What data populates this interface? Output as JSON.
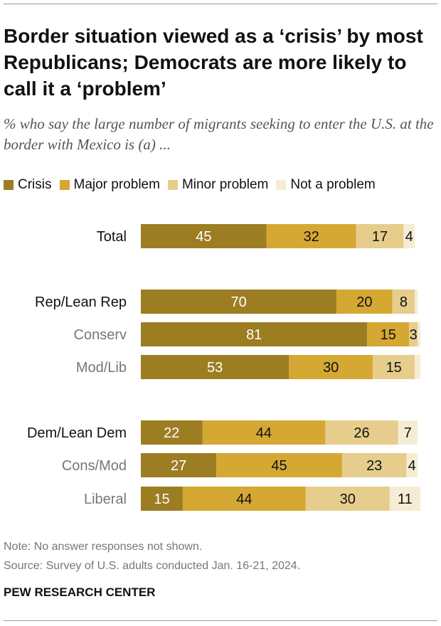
{
  "header": {
    "title": "Border situation viewed as a ‘crisis’ by most Republicans; Democrats are more likely to call it a ‘problem’",
    "subtitle": "% who say the large number of migrants seeking to enter the U.S. at the border with Mexico is (a) ..."
  },
  "legend": [
    {
      "label": "Crisis",
      "color": "#9c7d22"
    },
    {
      "label": "Major problem",
      "color": "#d5a833"
    },
    {
      "label": "Minor problem",
      "color": "#e6cd8c"
    },
    {
      "label": "Not a problem",
      "color": "#f5ecd4"
    }
  ],
  "chart_data": {
    "type": "bar",
    "orientation": "horizontal",
    "stacked": true,
    "unit": "%",
    "xlim": [
      0,
      100
    ],
    "grid": false,
    "series": [
      {
        "name": "Crisis",
        "color": "#9c7d22",
        "label_color": "#ffffff"
      },
      {
        "name": "Major problem",
        "color": "#d5a833",
        "label_color": "#111111"
      },
      {
        "name": "Minor problem",
        "color": "#e6cd8c",
        "label_color": "#111111"
      },
      {
        "name": "Not a problem",
        "color": "#f5ecd4",
        "label_color": "#111111"
      }
    ],
    "rows": [
      {
        "label": "Total",
        "style": "primary",
        "values": [
          45,
          32,
          17,
          4
        ],
        "labels": [
          "45",
          "32",
          "17",
          "4"
        ]
      },
      {
        "label": "Rep/Lean Rep",
        "style": "primary",
        "values": [
          70,
          20,
          8,
          1
        ],
        "labels": [
          "70",
          "20",
          "8",
          ""
        ]
      },
      {
        "label": "Conserv",
        "style": "sub",
        "values": [
          81,
          15,
          3,
          1
        ],
        "labels": [
          "81",
          "15",
          "3",
          ""
        ]
      },
      {
        "label": "Mod/Lib",
        "style": "sub",
        "values": [
          53,
          30,
          15,
          2
        ],
        "labels": [
          "53",
          "30",
          "15",
          ""
        ]
      },
      {
        "label": "Dem/Lean Dem",
        "style": "primary",
        "values": [
          22,
          44,
          26,
          7
        ],
        "labels": [
          "22",
          "44",
          "26",
          "7"
        ]
      },
      {
        "label": "Cons/Mod",
        "style": "sub",
        "values": [
          27,
          45,
          23,
          4
        ],
        "labels": [
          "27",
          "45",
          "23",
          "4"
        ]
      },
      {
        "label": "Liberal",
        "style": "sub",
        "values": [
          15,
          44,
          30,
          11
        ],
        "labels": [
          "15",
          "44",
          "30",
          "11"
        ]
      }
    ]
  },
  "footer": {
    "note": "Note: No answer responses not shown.",
    "source": "Source: Survey of U.S. adults conducted Jan. 16-21, 2024.",
    "brand": "PEW RESEARCH CENTER"
  }
}
